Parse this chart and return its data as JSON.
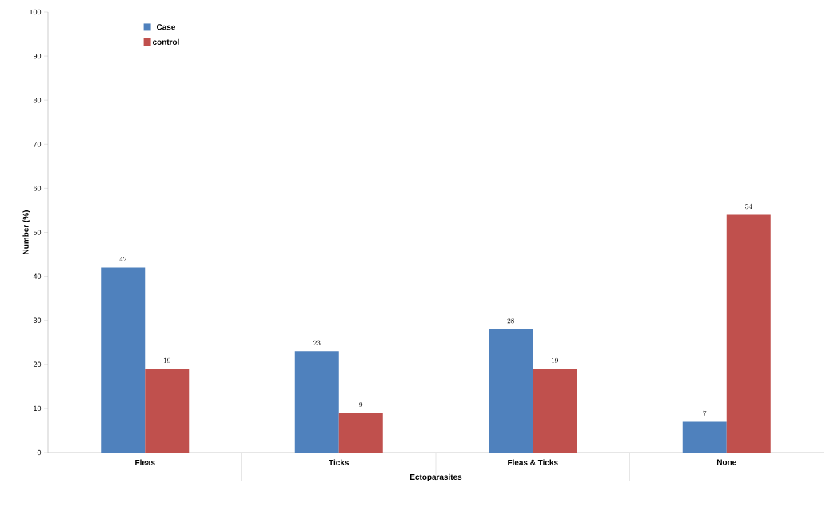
{
  "chart_data": {
    "type": "bar",
    "xlabel": "Ectoparasites",
    "ylabel": "Number (%)",
    "categories": [
      "Fleas",
      "Ticks",
      "Fleas & Ticks",
      "None"
    ],
    "series": [
      {
        "name": "Case",
        "color": "#4f81bd",
        "values": [
          42,
          23,
          28,
          7
        ]
      },
      {
        "name": "control",
        "color": "#c0504d",
        "values": [
          19,
          9,
          19,
          54
        ]
      }
    ],
    "ylim": [
      0,
      100
    ],
    "yticks": [
      0,
      10,
      20,
      30,
      40,
      50,
      60,
      70,
      80,
      90,
      100
    ],
    "data_labels": true,
    "grid": false,
    "legend": "top left"
  }
}
